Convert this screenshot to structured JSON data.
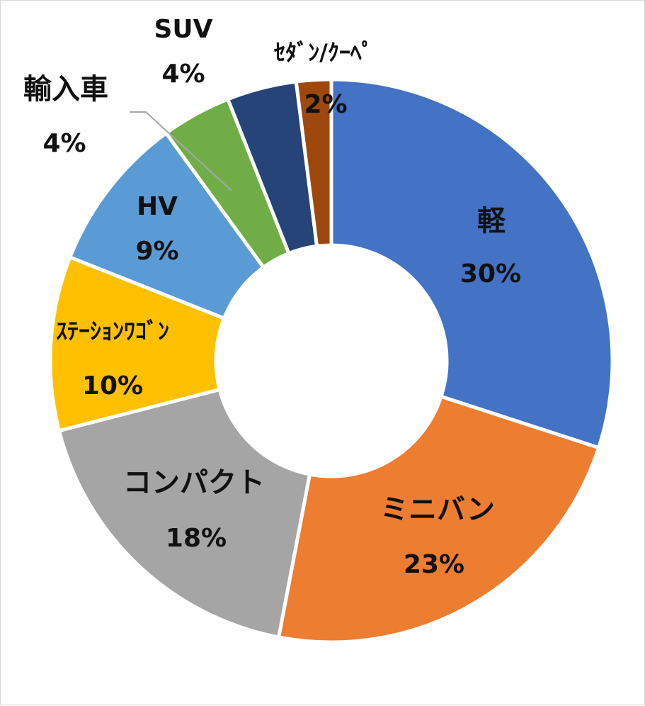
{
  "chart_data": {
    "type": "pie",
    "variant": "donut",
    "start_angle": "12 o'clock",
    "direction": "clockwise",
    "legend": "none",
    "series": [
      {
        "values": [
          {
            "category": "軽",
            "value": 30,
            "label": "30%",
            "color": "#4472C4"
          },
          {
            "category": "ミニバン",
            "value": 23,
            "label": "23%",
            "color": "#ED7D31"
          },
          {
            "category": "コンパクト",
            "value": 18,
            "label": "18%",
            "color": "#A5A5A5"
          },
          {
            "category": "ｽﾃｰｼｮﾝﾜｺﾞﾝ",
            "value": 10,
            "label": "10%",
            "color": "#FFC000"
          },
          {
            "category": "HV",
            "value": 9,
            "label": "9%",
            "color": "#5B9BD5"
          },
          {
            "category": "輸入車",
            "value": 4,
            "label": "4%",
            "color": "#70AD47"
          },
          {
            "category": "SUV",
            "value": 4,
            "label": "4%",
            "color": "#264478"
          },
          {
            "category": "ｾﾀﾞﾝ/ｸｰﾍﾟ",
            "value": 2,
            "label": "2%",
            "color": "#9E480E"
          }
        ]
      }
    ]
  }
}
